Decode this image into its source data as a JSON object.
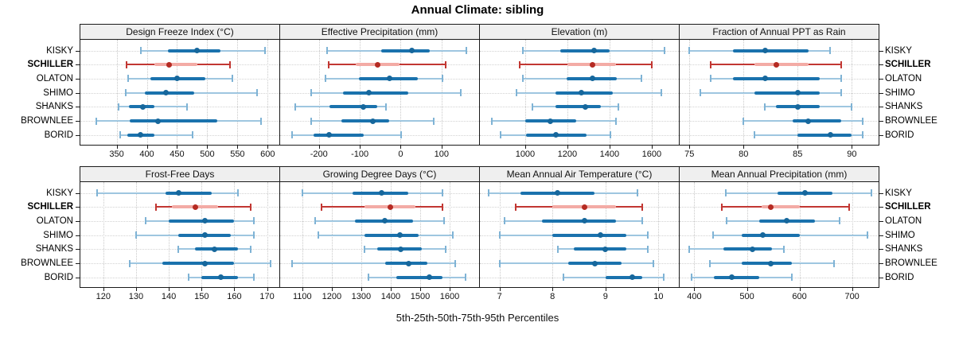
{
  "title": "Annual Climate: sibling",
  "xlabel": "5th-25th-50th-75th-95th Percentiles",
  "stations": [
    "KISKY",
    "SCHILLER",
    "OLATON",
    "SHIMO",
    "SHANKS",
    "BROWNLEE",
    "BORID"
  ],
  "highlight_station": "SCHILLER",
  "colors": {
    "normal": {
      "range": "#9ec6e0",
      "cap": "#7fb3d5",
      "iqr": "#1a72ad",
      "dot": "#16679c"
    },
    "highlight": {
      "range": "#c23732",
      "cap": "#c23732",
      "iqr": "#f3aba5",
      "dot": "#b52a22"
    },
    "grid": "#c9c9c9",
    "strip_bg": "#efefef",
    "border": "#1a1a1a"
  },
  "chart_data": {
    "type": "multi-panel percentile dotplot",
    "panel_grid": {
      "rows": 2,
      "cols": 4
    },
    "percentiles": [
      5,
      25,
      50,
      75,
      95
    ],
    "legend_position": "none",
    "grid": "dotted",
    "panels": [
      {
        "title": "Design Freeze Index (°C)",
        "domain": [
          290,
          618
        ],
        "ticks": [
          350,
          400,
          450,
          500,
          550,
          600
        ],
        "tick_labels": [
          "350",
          "400",
          "450",
          "500",
          "550",
          "600"
        ],
        "values": [
          [
            390,
            435,
            483,
            522,
            596
          ],
          [
            366,
            412,
            437,
            483,
            538
          ],
          [
            369,
            406,
            450,
            497,
            541
          ],
          [
            365,
            397,
            431,
            479,
            583
          ],
          [
            353,
            370,
            393,
            412,
            467
          ],
          [
            317,
            372,
            418,
            517,
            589
          ],
          [
            356,
            368,
            389,
            412,
            476
          ]
        ]
      },
      {
        "title": "Effective Precipitation (mm)",
        "domain": [
          -295,
          190
        ],
        "ticks": [
          -200,
          -100,
          0,
          100
        ],
        "tick_labels": [
          "-200",
          "-100",
          "0",
          "100"
        ],
        "values": [
          [
            -180,
            -48,
            27,
            71,
            161
          ],
          [
            -177,
            -110,
            -57,
            -3,
            110
          ],
          [
            -184,
            -103,
            -27,
            42,
            103
          ],
          [
            -220,
            -142,
            -77,
            19,
            147
          ],
          [
            -258,
            -175,
            -92,
            -58,
            -35
          ],
          [
            -220,
            -145,
            -68,
            -29,
            81
          ],
          [
            -265,
            -214,
            -175,
            -90,
            1
          ]
        ]
      },
      {
        "title": "Elevation (m)",
        "domain": [
          785,
          1725
        ],
        "ticks": [
          1000,
          1200,
          1400,
          1600
        ],
        "tick_labels": [
          "1000",
          "1200",
          "1400",
          "1600"
        ],
        "values": [
          [
            990,
            1165,
            1325,
            1400,
            1660
          ],
          [
            975,
            1200,
            1320,
            1430,
            1600
          ],
          [
            990,
            1195,
            1320,
            1435,
            1550
          ],
          [
            960,
            1145,
            1265,
            1415,
            1645
          ],
          [
            1035,
            1145,
            1285,
            1360,
            1440
          ],
          [
            840,
            1000,
            1120,
            1240,
            1430
          ],
          [
            885,
            1005,
            1145,
            1290,
            1405
          ]
        ]
      },
      {
        "title": "Fraction of Annual PPT as Rain",
        "domain": [
          74.1,
          92.4
        ],
        "ticks": [
          75,
          80,
          85,
          90
        ],
        "tick_labels": [
          "75",
          "80",
          "85",
          "90"
        ],
        "values": [
          [
            75,
            79,
            82,
            86,
            88
          ],
          [
            77,
            81,
            83,
            86,
            89
          ],
          [
            77,
            79,
            82,
            87,
            89
          ],
          [
            76,
            81,
            85,
            87,
            89
          ],
          [
            82,
            83,
            85,
            87,
            90
          ],
          [
            80,
            84.5,
            86,
            89,
            91
          ],
          [
            81,
            85,
            88,
            90,
            91
          ]
        ]
      },
      {
        "title": "Frost-Free Days",
        "domain": [
          113,
          173.5
        ],
        "ticks": [
          120,
          130,
          140,
          150,
          160,
          170
        ],
        "tick_labels": [
          "120",
          "130",
          "140",
          "150",
          "160",
          "170"
        ],
        "values": [
          [
            118,
            139,
            143,
            153,
            161
          ],
          [
            136,
            141,
            148,
            155,
            165
          ],
          [
            133,
            140,
            151,
            160,
            166
          ],
          [
            130,
            143,
            151,
            159,
            166
          ],
          [
            143,
            148,
            154,
            161,
            165
          ],
          [
            128,
            138,
            151,
            160,
            171
          ],
          [
            146,
            150,
            156,
            161,
            166
          ]
        ]
      },
      {
        "title": "Growing Degree Days (°C)",
        "domain": [
          1025,
          1697
        ],
        "ticks": [
          1100,
          1200,
          1300,
          1400,
          1500,
          1600
        ],
        "tick_labels": [
          "1100",
          "1200",
          "1300",
          "1400",
          "1500",
          "1600"
        ],
        "values": [
          [
            1100,
            1270,
            1370,
            1460,
            1575
          ],
          [
            1165,
            1310,
            1400,
            1485,
            1575
          ],
          [
            1145,
            1280,
            1380,
            1475,
            1580
          ],
          [
            1155,
            1310,
            1430,
            1495,
            1610
          ],
          [
            1310,
            1355,
            1435,
            1505,
            1585
          ],
          [
            1065,
            1380,
            1460,
            1525,
            1620
          ],
          [
            1325,
            1420,
            1530,
            1575,
            1655
          ]
        ]
      },
      {
        "title": "Mean Annual Air Temperature (°C)",
        "domain": [
          6.63,
          10.37
        ],
        "ticks": [
          7,
          8,
          9,
          10
        ],
        "tick_labels": [
          "7",
          "8",
          "9",
          "10"
        ],
        "values": [
          [
            6.8,
            7.4,
            8.1,
            8.8,
            9.6
          ],
          [
            7.3,
            8.0,
            8.6,
            9.2,
            9.7
          ],
          [
            7.1,
            7.8,
            8.6,
            9.2,
            9.7
          ],
          [
            7.0,
            8.0,
            8.9,
            9.4,
            9.8
          ],
          [
            8.1,
            8.4,
            9.0,
            9.4,
            9.8
          ],
          [
            7.0,
            8.3,
            8.8,
            9.3,
            9.9
          ],
          [
            8.2,
            9.0,
            9.5,
            9.7,
            10.1
          ]
        ]
      },
      {
        "title": "Mean Annual Precipitation (mm)",
        "domain": [
          372,
          749
        ],
        "ticks": [
          400,
          500,
          600,
          700
        ],
        "tick_labels": [
          "400",
          "500",
          "600",
          "700"
        ],
        "values": [
          [
            460,
            558,
            611,
            663,
            737
          ],
          [
            452,
            528,
            545,
            600,
            695
          ],
          [
            462,
            524,
            576,
            630,
            676
          ],
          [
            435,
            490,
            530,
            600,
            730
          ],
          [
            390,
            455,
            510,
            548,
            571
          ],
          [
            430,
            490,
            545,
            585,
            665
          ],
          [
            395,
            437,
            471,
            523,
            585
          ]
        ]
      }
    ]
  }
}
